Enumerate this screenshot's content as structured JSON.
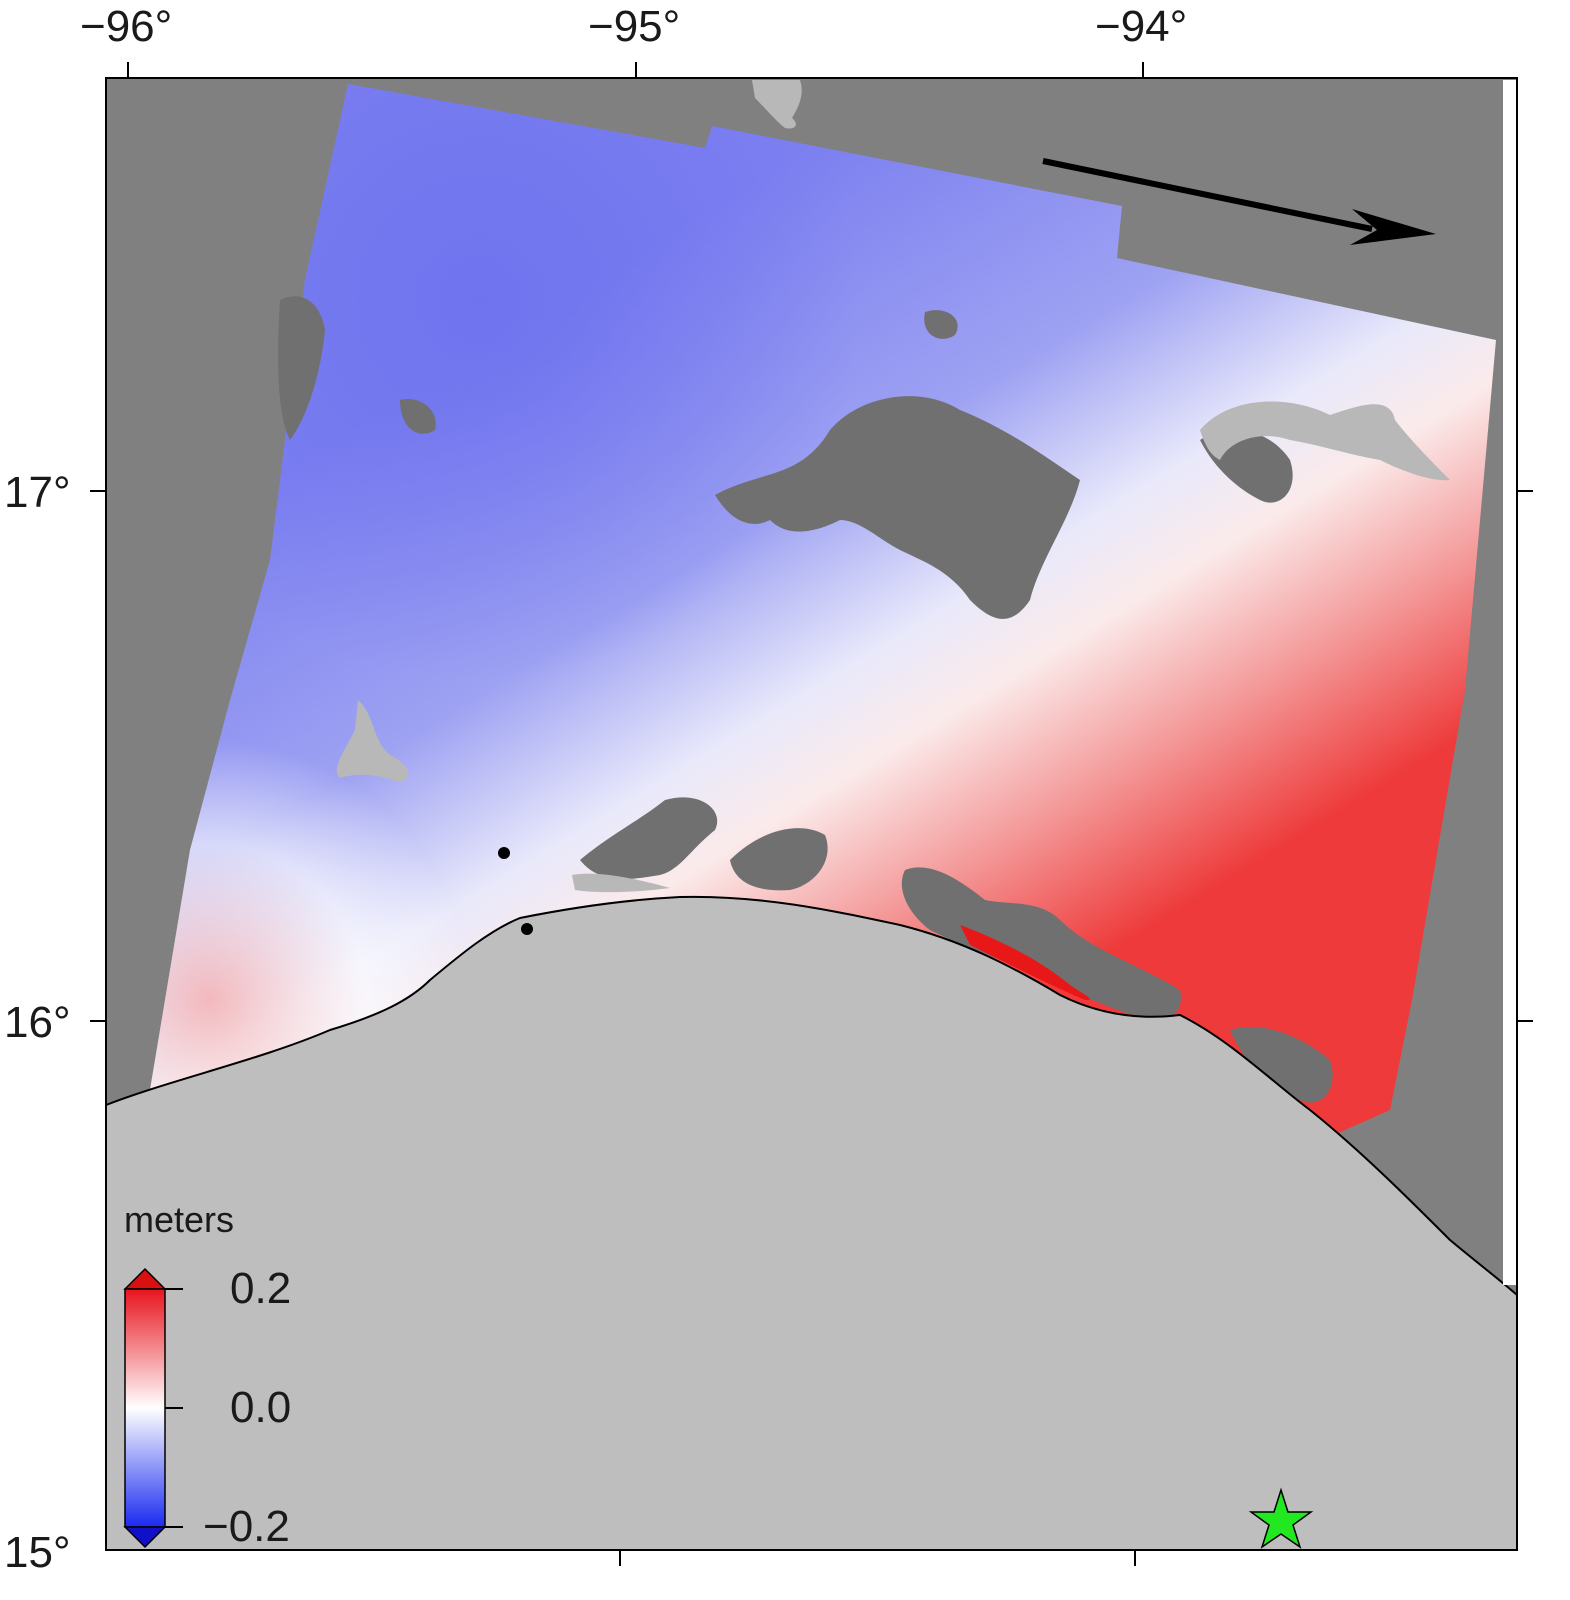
{
  "map": {
    "top_axis_ticks": [
      "−96°",
      "−95°",
      "−94°"
    ],
    "left_axis_ticks": [
      "17°",
      "16°",
      "15°"
    ],
    "colorbar": {
      "title": "meters",
      "max_label": "0.2",
      "mid_label": "0.0",
      "min_label": "−0.2",
      "range": [
        -0.2,
        0.2
      ],
      "colors": {
        "max": "#e8141e",
        "mid": "#ffffff",
        "min": "#1a2bf0"
      }
    },
    "colors": {
      "frame_background": "#808080",
      "ocean": "#bebebe",
      "decorrelated": "#707070",
      "water_bodies": "#b8b8b8",
      "epicenter_star": "#22e822",
      "arrow": "#000000"
    },
    "markers": [
      {
        "name": "station-dot"
      },
      {
        "name": "station-dot"
      }
    ],
    "epicenter": {
      "icon": "star-icon"
    },
    "direction_arrow": {
      "icon": "arrow-icon"
    }
  }
}
